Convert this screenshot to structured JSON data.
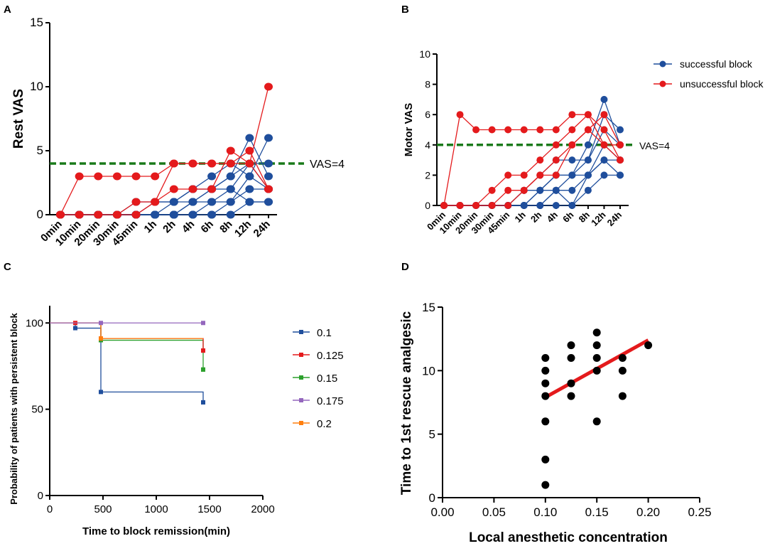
{
  "panels": {
    "a": "A",
    "b": "B",
    "c": "C",
    "d": "D"
  },
  "colors": {
    "successful": "#1f4e9c",
    "unsuccessful": "#e41a1c",
    "threshold": "#1a7a1a",
    "regression": "#e41a1c",
    "points": "#000000"
  },
  "chart_data": [
    {
      "panel": "A",
      "type": "line",
      "title": "",
      "xlabel": "",
      "ylabel": "Rest VAS",
      "ylim": [
        0,
        15
      ],
      "yticks": [
        0,
        5,
        10,
        15
      ],
      "categories": [
        "0min",
        "10min",
        "20min",
        "30min",
        "45min",
        "1h",
        "2h",
        "4h",
        "6h",
        "8h",
        "12h",
        "24h"
      ],
      "threshold": {
        "value": 4,
        "label": "VAS=4"
      },
      "series": [
        {
          "name": "successful block",
          "values": [
            0,
            0,
            0,
            0,
            0,
            0,
            0,
            0,
            0,
            0,
            1,
            1
          ]
        },
        {
          "name": "successful block",
          "values": [
            0,
            0,
            0,
            0,
            0,
            0,
            0,
            0,
            0,
            1,
            2,
            2
          ]
        },
        {
          "name": "successful block",
          "values": [
            0,
            0,
            0,
            0,
            0,
            0,
            0,
            0,
            1,
            1,
            3,
            2
          ]
        },
        {
          "name": "successful block",
          "values": [
            0,
            0,
            0,
            0,
            0,
            0,
            0,
            1,
            1,
            2,
            4,
            2
          ]
        },
        {
          "name": "successful block",
          "values": [
            0,
            0,
            0,
            0,
            0,
            0,
            1,
            1,
            2,
            3,
            6,
            3
          ]
        },
        {
          "name": "successful block",
          "values": [
            0,
            0,
            0,
            0,
            0,
            1,
            1,
            2,
            2,
            3,
            4,
            4
          ]
        },
        {
          "name": "successful block",
          "values": [
            0,
            0,
            0,
            0,
            1,
            1,
            1,
            2,
            3,
            4,
            3,
            6
          ]
        },
        {
          "name": "successful block",
          "values": [
            0,
            0,
            0,
            0,
            0,
            0,
            0,
            1,
            2,
            2,
            1,
            1
          ]
        },
        {
          "name": "unsuccessful block",
          "values": [
            0,
            3,
            3,
            3,
            3,
            3,
            4,
            4,
            4,
            4,
            5,
            2
          ]
        },
        {
          "name": "unsuccessful block",
          "values": [
            0,
            0,
            0,
            0,
            1,
            1,
            2,
            2,
            2,
            5,
            4,
            10
          ]
        },
        {
          "name": "unsuccessful block",
          "values": [
            0,
            0,
            0,
            0,
            0,
            1,
            4,
            4,
            4,
            4,
            4,
            2
          ]
        }
      ]
    },
    {
      "panel": "B",
      "type": "line",
      "title": "",
      "xlabel": "",
      "ylabel": "Motor VAS",
      "ylim": [
        0,
        10
      ],
      "yticks": [
        0,
        2,
        4,
        6,
        8,
        10
      ],
      "categories": [
        "0min",
        "10min",
        "20min",
        "30min",
        "45min",
        "1h",
        "2h",
        "4h",
        "6h",
        "8h",
        "12h",
        "24h"
      ],
      "threshold": {
        "value": 4,
        "label": "VAS=4"
      },
      "legend": [
        "successful block",
        "unsuccessful block"
      ],
      "series": [
        {
          "name": "successful block",
          "values": [
            0,
            0,
            0,
            0,
            0,
            0,
            0,
            0,
            0,
            1,
            2,
            2
          ]
        },
        {
          "name": "successful block",
          "values": [
            0,
            0,
            0,
            0,
            0,
            0,
            0,
            1,
            1,
            2,
            3,
            3
          ]
        },
        {
          "name": "successful block",
          "values": [
            0,
            0,
            0,
            0,
            0,
            0,
            1,
            1,
            2,
            2,
            4,
            3
          ]
        },
        {
          "name": "successful block",
          "values": [
            0,
            0,
            0,
            0,
            0,
            1,
            1,
            2,
            2,
            3,
            5,
            4
          ]
        },
        {
          "name": "successful block",
          "values": [
            0,
            0,
            0,
            0,
            0,
            1,
            2,
            3,
            3,
            3,
            6,
            5
          ]
        },
        {
          "name": "successful block",
          "values": [
            0,
            0,
            0,
            0,
            0,
            0,
            1,
            2,
            2,
            4,
            7,
            4
          ]
        },
        {
          "name": "successful block",
          "values": [
            0,
            0,
            0,
            0,
            0,
            0,
            0,
            1,
            0,
            2,
            3,
            2
          ]
        },
        {
          "name": "unsuccessful block",
          "values": [
            0,
            6,
            5,
            5,
            5,
            5,
            5,
            5,
            6,
            6,
            4,
            4
          ]
        },
        {
          "name": "unsuccessful block",
          "values": [
            0,
            0,
            0,
            1,
            2,
            2,
            3,
            4,
            5,
            6,
            5,
            3
          ]
        },
        {
          "name": "unsuccessful block",
          "values": [
            0,
            0,
            0,
            0,
            1,
            1,
            2,
            3,
            4,
            5,
            6,
            4
          ]
        },
        {
          "name": "unsuccessful block",
          "values": [
            0,
            0,
            0,
            0,
            0,
            1,
            2,
            2,
            4,
            5,
            4,
            3
          ]
        }
      ]
    },
    {
      "panel": "C",
      "type": "line",
      "title": "",
      "xlabel": "Time to block remission(min)",
      "ylabel": "Probability of patients with persistent block",
      "xlim": [
        0,
        2000
      ],
      "xticks": [
        0,
        500,
        1000,
        1500,
        2000
      ],
      "ylim": [
        0,
        110
      ],
      "yticks": [
        0,
        50,
        100
      ],
      "legend": [
        "0.1",
        "0.125",
        "0.15",
        "0.175",
        "0.2"
      ],
      "series": [
        {
          "name": "0.1",
          "color": "#1f4e9c",
          "steps": [
            [
              0,
              100
            ],
            [
              240,
              97
            ],
            [
              480,
              60
            ],
            [
              1440,
              54
            ]
          ],
          "end": 1440
        },
        {
          "name": "0.125",
          "color": "#e41a1c",
          "steps": [
            [
              0,
              100
            ],
            [
              480,
              91
            ],
            [
              1440,
              84
            ]
          ],
          "end": 1440,
          "censor_x": 240
        },
        {
          "name": "0.15",
          "color": "#2ca02c",
          "steps": [
            [
              0,
              100
            ],
            [
              480,
              90
            ],
            [
              1440,
              73
            ]
          ],
          "end": 1440
        },
        {
          "name": "0.175",
          "color": "#9467bd",
          "steps": [
            [
              0,
              100
            ]
          ],
          "end": 1440,
          "censor_x": 480
        },
        {
          "name": "0.2",
          "color": "#ff7f0e",
          "steps": [
            [
              0,
              100
            ],
            [
              480,
              91
            ]
          ],
          "end": 1440
        }
      ]
    },
    {
      "panel": "D",
      "type": "scatter",
      "title": "",
      "xlabel": "Local anesthetic concentration",
      "ylabel": "Time to 1st rescue analgesic",
      "xlim": [
        0,
        0.25
      ],
      "xticks": [
        "0.00",
        "0.05",
        "0.10",
        "0.15",
        "0.20",
        "0.25"
      ],
      "ylim": [
        0,
        15
      ],
      "yticks": [
        0,
        5,
        10,
        15
      ],
      "points": [
        [
          0.1,
          1
        ],
        [
          0.1,
          3
        ],
        [
          0.1,
          6
        ],
        [
          0.1,
          8
        ],
        [
          0.1,
          9
        ],
        [
          0.1,
          10
        ],
        [
          0.1,
          11
        ],
        [
          0.125,
          8
        ],
        [
          0.125,
          9
        ],
        [
          0.125,
          11
        ],
        [
          0.125,
          12
        ],
        [
          0.15,
          6
        ],
        [
          0.15,
          10
        ],
        [
          0.15,
          11
        ],
        [
          0.15,
          12
        ],
        [
          0.15,
          13
        ],
        [
          0.175,
          8
        ],
        [
          0.175,
          10
        ],
        [
          0.175,
          11
        ],
        [
          0.2,
          12
        ]
      ],
      "regression": {
        "x": [
          0.1,
          0.2
        ],
        "y": [
          7.9,
          12.4
        ]
      }
    }
  ]
}
